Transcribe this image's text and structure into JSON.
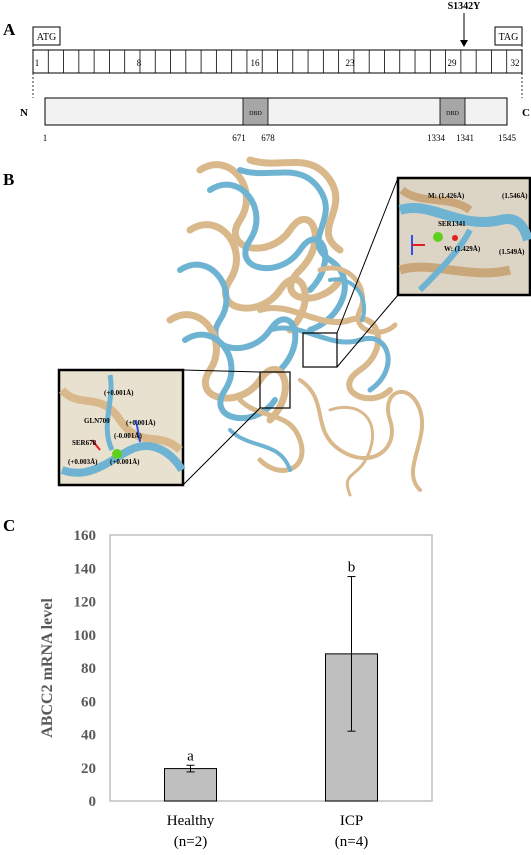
{
  "panel_a": {
    "label": "A",
    "start_codon": "ATG",
    "stop_codon": "TAG",
    "mutation": "S1342Y",
    "exon_numbers": [
      "1",
      "8",
      "16",
      "23",
      "29",
      "32"
    ],
    "n_term": "N",
    "c_term": "C",
    "domain_label": "DBD",
    "positions": [
      "1",
      "671",
      "678",
      "1334",
      "1341",
      "1545"
    ]
  },
  "panel_b": {
    "label": "B",
    "inset_top": {
      "m_label": "M: (1.426Å)",
      "r_label": "(1.546Å)",
      "residue": "SER1341",
      "w_label": "W: (1.429Å)",
      "side_label": "(1.549Å)"
    },
    "inset_bottom": {
      "l1": "(+0.001Å)",
      "residue1": "GLN700",
      "l2": "(+0.001Å)",
      "l3": "(-0.001Å)",
      "residue2": "SER678",
      "l4": "(+0.003Å)",
      "l5": "(+0.001Å)"
    }
  },
  "panel_c": {
    "label": "C"
  },
  "chart_data": {
    "type": "bar",
    "categories": [
      "Healthy",
      "ICP"
    ],
    "sample_sizes": [
      "(n=2)",
      "(n=4)"
    ],
    "values": [
      19.5,
      88.5
    ],
    "error": [
      2,
      46.5
    ],
    "significance": [
      "a",
      "b"
    ],
    "ylabel": "ABCC2 mRNA level",
    "ylim": [
      0,
      160
    ],
    "yticks": [
      "0",
      "20",
      "40",
      "60",
      "80",
      "100",
      "120",
      "140",
      "160"
    ],
    "bar_color": "#bfbfbf",
    "grid": false
  }
}
